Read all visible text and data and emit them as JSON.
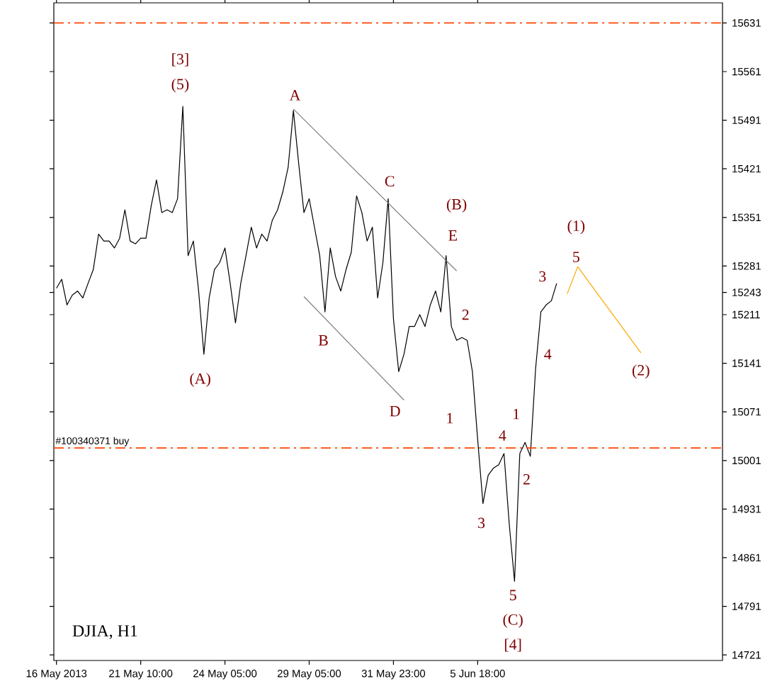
{
  "chart_data": {
    "type": "line",
    "title": "DJIA, H1",
    "categories": [
      "16 May 2013",
      null,
      null,
      null,
      null,
      null,
      null,
      null,
      null,
      null,
      null,
      null,
      null,
      null,
      null,
      null,
      "21 May 10:00",
      null,
      null,
      null,
      null,
      null,
      null,
      null,
      null,
      null,
      null,
      null,
      null,
      null,
      null,
      null,
      "24 May 05:00",
      null,
      null,
      null,
      null,
      null,
      null,
      null,
      null,
      null,
      null,
      null,
      null,
      null,
      null,
      null,
      "29 May 05:00",
      null,
      null,
      null,
      null,
      null,
      null,
      null,
      null,
      null,
      null,
      null,
      null,
      null,
      null,
      null,
      "31 May 23:00",
      null,
      null,
      null,
      null,
      null,
      null,
      null,
      null,
      null,
      null,
      null,
      null,
      null,
      null,
      null,
      "5 Jun 18:00",
      null,
      null,
      null,
      null,
      null,
      null,
      null,
      null,
      null,
      null,
      null,
      null,
      null,
      null,
      null,
      null,
      null,
      null,
      null,
      null,
      null,
      null,
      null,
      null,
      null,
      null,
      null,
      null,
      null,
      null,
      null,
      null,
      null,
      null,
      null,
      null,
      null,
      null,
      null,
      null,
      null,
      null,
      null,
      null,
      null,
      null
    ],
    "ylim": [
      14713,
      15660
    ],
    "yticks": [
      14721,
      14791,
      14861,
      14931,
      15001,
      15071,
      15141,
      15211,
      15243,
      15281,
      15351,
      15421,
      15491,
      15561,
      15631
    ],
    "series": [
      {
        "color": "#000000",
        "values": [
          15249,
          15262,
          15225,
          15239,
          15245,
          15235,
          15256,
          15276,
          15327,
          15317,
          15317,
          15307,
          15321,
          15362,
          15317,
          15313,
          15321,
          15321,
          15368,
          15405,
          15358,
          15362,
          15358,
          15378,
          15511,
          15296,
          15317,
          15245,
          15154,
          15235,
          15276,
          15286,
          15307,
          15256,
          15199,
          15256,
          15296,
          15337,
          15307,
          15327,
          15317,
          15347,
          15362,
          15388,
          15423,
          15505,
          15429,
          15358,
          15378,
          15337,
          15296,
          15215,
          15307,
          15266,
          15245,
          15276,
          15301,
          15382,
          15358,
          15317,
          15337,
          15235,
          15286,
          15378,
          15205,
          15129,
          15154,
          15194,
          15194,
          15211,
          15194,
          15225,
          15245,
          15215,
          15296,
          15194,
          15174,
          15178,
          15174,
          15129,
          15031,
          14939,
          14980,
          14990,
          14995,
          15011,
          14909,
          14827,
          15011,
          15027,
          15007,
          15133,
          15215,
          15225,
          15231,
          15256,
          null,
          null,
          null,
          null,
          null,
          null,
          null,
          null,
          null,
          null,
          null,
          null,
          null,
          null,
          null,
          null,
          null,
          null,
          null,
          null,
          null,
          null,
          null,
          null,
          null,
          null,
          null,
          null,
          null,
          null,
          null
        ]
      },
      {
        "color": "#808080",
        "values": [
          null,
          null,
          null,
          null,
          null,
          null,
          null,
          null,
          null,
          null,
          null,
          null,
          null,
          null,
          null,
          null,
          null,
          null,
          null,
          null,
          null,
          null,
          null,
          null,
          null,
          null,
          null,
          null,
          null,
          null,
          null,
          null,
          null,
          null,
          null,
          null,
          null,
          null,
          null,
          null,
          null,
          null,
          null,
          null,
          null,
          15507,
          null,
          null,
          null,
          null,
          null,
          null,
          null,
          null,
          null,
          null,
          null,
          null,
          null,
          null,
          null,
          null,
          null,
          null,
          null,
          null,
          null,
          null,
          null,
          null,
          null,
          null,
          null,
          null,
          null,
          null,
          15274,
          null,
          null,
          null,
          null,
          null,
          null,
          null,
          null,
          null,
          null,
          null,
          null,
          null,
          null,
          null,
          null,
          null,
          null,
          null,
          null,
          null,
          null,
          null,
          null,
          null,
          null,
          null,
          null,
          null,
          null,
          null,
          null,
          null,
          null,
          null,
          null,
          null,
          null,
          null,
          null,
          null,
          null,
          null,
          null,
          null,
          null,
          null,
          null,
          null,
          null
        ]
      },
      {
        "color": "#808080",
        "values": [
          null,
          null,
          null,
          null,
          null,
          null,
          null,
          null,
          null,
          null,
          null,
          null,
          null,
          null,
          null,
          null,
          null,
          null,
          null,
          null,
          null,
          null,
          null,
          null,
          null,
          null,
          null,
          null,
          null,
          null,
          null,
          null,
          null,
          null,
          null,
          null,
          null,
          null,
          null,
          null,
          null,
          null,
          null,
          null,
          null,
          null,
          null,
          15237,
          null,
          null,
          null,
          null,
          null,
          null,
          null,
          null,
          null,
          null,
          null,
          null,
          null,
          null,
          null,
          null,
          null,
          null,
          15088,
          null,
          null,
          null,
          null,
          null,
          null,
          null,
          null,
          null,
          null,
          null,
          null,
          null,
          null,
          null,
          null,
          null,
          null,
          null,
          null,
          null,
          null,
          null,
          null,
          null,
          null,
          null,
          null,
          null,
          null,
          null,
          null,
          null,
          null,
          null,
          null,
          null,
          null,
          null,
          null,
          null,
          null,
          null,
          null,
          null,
          null,
          null,
          null,
          null,
          null,
          null,
          null,
          null,
          null,
          null,
          null,
          null,
          null,
          null,
          null
        ]
      },
      {
        "color": "#ffa500",
        "values": [
          null,
          null,
          null,
          null,
          null,
          null,
          null,
          null,
          null,
          null,
          null,
          null,
          null,
          null,
          null,
          null,
          null,
          null,
          null,
          null,
          null,
          null,
          null,
          null,
          null,
          null,
          null,
          null,
          null,
          null,
          null,
          null,
          null,
          null,
          null,
          null,
          null,
          null,
          null,
          null,
          null,
          null,
          null,
          null,
          null,
          null,
          null,
          null,
          null,
          null,
          null,
          null,
          null,
          null,
          null,
          null,
          null,
          null,
          null,
          null,
          null,
          null,
          null,
          null,
          null,
          null,
          null,
          null,
          null,
          null,
          null,
          null,
          null,
          null,
          null,
          null,
          null,
          null,
          null,
          null,
          null,
          null,
          null,
          null,
          null,
          null,
          null,
          null,
          null,
          null,
          null,
          null,
          null,
          null,
          null,
          null,
          null,
          15241,
          null,
          15280,
          null,
          null,
          null,
          null,
          null,
          null,
          null,
          null,
          null,
          null,
          null,
          15156,
          null,
          null,
          null,
          null,
          null,
          null,
          null,
          null,
          null,
          null,
          null,
          null,
          null,
          null,
          null
        ]
      }
    ],
    "ref_lines": [
      {
        "axis": "y",
        "value": 15631,
        "color": "#ff4500",
        "line_style": "dashed"
      },
      {
        "axis": "y",
        "value": 15019,
        "label": "#100340371 buy",
        "color": "#ff4500",
        "line_style": "dashed"
      }
    ],
    "annotations": [
      "[3]",
      "(5)",
      "A",
      "C",
      "(B)",
      "E",
      "B",
      "D",
      "(A)",
      "2",
      "1",
      "3",
      "4",
      "(1)",
      "5",
      "(2)",
      "4",
      "1",
      "2",
      "3",
      "5",
      "(C)",
      "[4]"
    ]
  }
}
